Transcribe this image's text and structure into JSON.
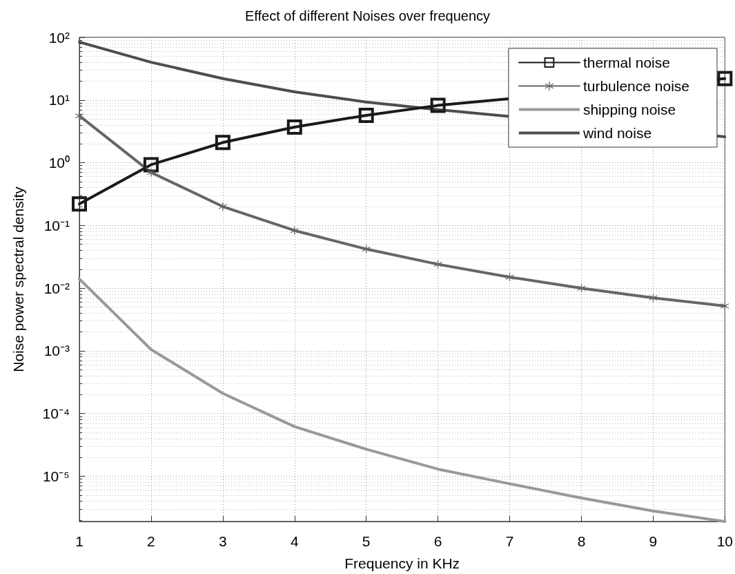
{
  "chart_data": {
    "type": "line",
    "title": "Effect of different Noises over frequency",
    "xlabel": "Frequency in KHz",
    "ylabel": "Noise power spectral density",
    "x": [
      1,
      2,
      3,
      4,
      5,
      6,
      7,
      8,
      9,
      10
    ],
    "series": [
      {
        "name": "thermal noise",
        "color": "#1a1a1a",
        "marker": "square",
        "values": [
          0.22,
          0.93,
          2.1,
          3.7,
          5.7,
          8.2,
          null,
          null,
          null,
          22
        ]
      },
      {
        "name": "turbulence noise",
        "color": "#666666",
        "marker": "cross",
        "values": [
          5.6,
          0.7,
          0.2,
          0.083,
          0.042,
          0.024,
          0.015,
          0.01,
          0.007,
          0.0052
        ]
      },
      {
        "name": "shipping noise",
        "color": "#999999",
        "values": [
          0.014,
          0.00105,
          0.00021,
          6.2e-05,
          2.7e-05,
          1.3e-05,
          7.6e-06,
          4.5e-06,
          2.8e-06,
          1.9e-06
        ]
      },
      {
        "name": "wind noise",
        "color": "#4d4d4d",
        "values": [
          84,
          40,
          22,
          13.5,
          9.3,
          7,
          null,
          null,
          null,
          2.6
        ]
      }
    ],
    "log": "y",
    "xlim": [
      1,
      10
    ],
    "xticks": [
      1,
      2,
      3,
      4,
      5,
      6,
      7,
      8,
      9,
      10
    ],
    "ylim": [
      1.9e-06,
      100
    ],
    "yticks": [
      {
        "value": 1e-05,
        "label": "10⁻⁵"
      },
      {
        "value": 0.0001,
        "label": "10⁻⁴"
      },
      {
        "value": 0.001,
        "label": "10⁻³"
      },
      {
        "value": 0.01,
        "label": "10⁻²"
      },
      {
        "value": 0.1,
        "label": "10⁻¹"
      },
      {
        "value": 1,
        "label": "10⁰"
      },
      {
        "value": 10,
        "label": "10¹"
      },
      {
        "value": 100,
        "label": "10²"
      }
    ],
    "grid": true,
    "legend": "top right",
    "line_style": "solid"
  }
}
